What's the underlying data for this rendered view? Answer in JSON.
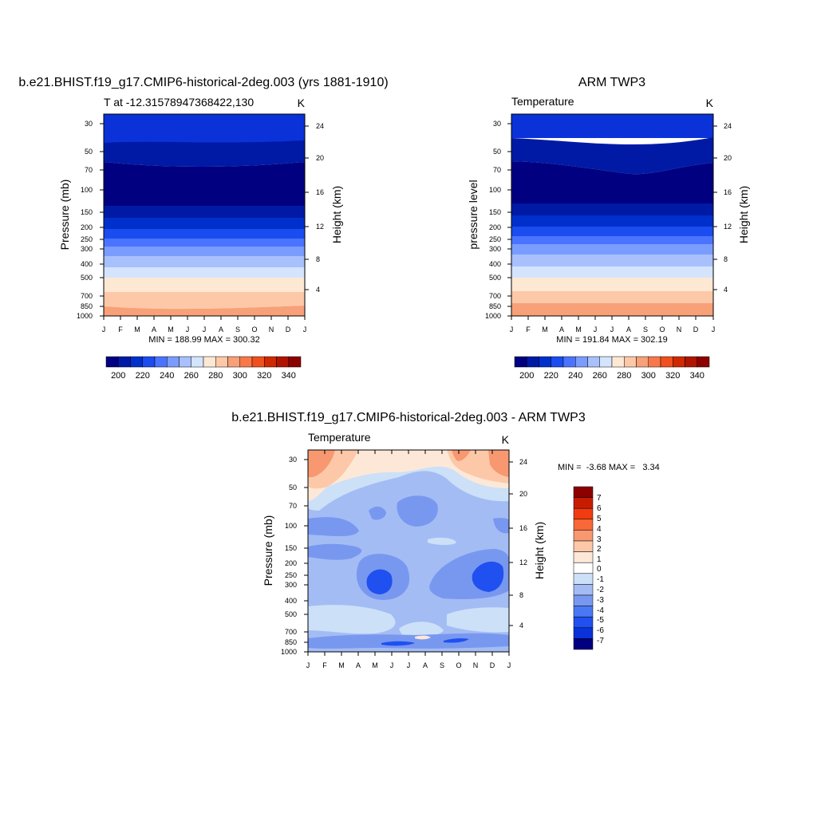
{
  "chart_data": [
    {
      "type": "heatmap",
      "title": "b.e21.BHIST.f19_g17.CMIP6-historical-2deg.003 (yrs 1881-1910)",
      "left_label": "T at -12.31578947368422,130",
      "right_label": "K",
      "xlabel": "",
      "ylabel": "Pressure (mb)",
      "ylabel_right": "Height (km)",
      "x_ticks": [
        "J",
        "F",
        "M",
        "A",
        "M",
        "J",
        "J",
        "A",
        "S",
        "O",
        "N",
        "D",
        "J"
      ],
      "y_ticks": [
        "30",
        "50",
        "70",
        "100",
        "150",
        "200",
        "250",
        "300",
        "400",
        "500",
        "700",
        "850",
        "1000"
      ],
      "y_right_ticks": [
        "24",
        "20",
        "16",
        "12",
        "8",
        "4"
      ],
      "ylim_mb": [
        25,
        1000
      ],
      "stats": "MIN = 188.99 MAX = 300.32",
      "min": 188.99,
      "max": 300.32,
      "colorbar": {
        "orientation": "horizontal",
        "colors": [
          "#000080",
          "#001aa6",
          "#0030cc",
          "#1a4cf0",
          "#4a74ff",
          "#7a9cff",
          "#a8c0fc",
          "#d4e4fc",
          "#fde8d4",
          "#fcc8a8",
          "#f8a078",
          "#f8784a",
          "#f0501e",
          "#d02800",
          "#b01400",
          "#8c0000"
        ],
        "tick_labels": [
          "200",
          "220",
          "240",
          "260",
          "280",
          "300",
          "320",
          "340"
        ]
      }
    },
    {
      "type": "heatmap",
      "title": "ARM TWP3",
      "left_label": "Temperature",
      "right_label": "K",
      "xlabel": "",
      "ylabel": "pressure level",
      "ylabel_right": "Height (km)",
      "x_ticks": [
        "J",
        "F",
        "M",
        "A",
        "M",
        "J",
        "J",
        "A",
        "S",
        "O",
        "N",
        "D",
        "J"
      ],
      "y_ticks": [
        "30",
        "50",
        "70",
        "100",
        "150",
        "200",
        "250",
        "300",
        "400",
        "500",
        "700",
        "850",
        "1000"
      ],
      "y_right_ticks": [
        "24",
        "20",
        "16",
        "12",
        "8",
        "4"
      ],
      "ylim_mb": [
        25,
        1000
      ],
      "stats": "MIN = 191.84 MAX = 302.19",
      "min": 191.84,
      "max": 302.19,
      "colorbar": {
        "orientation": "horizontal",
        "colors": [
          "#000080",
          "#001aa6",
          "#0030cc",
          "#1a4cf0",
          "#4a74ff",
          "#7a9cff",
          "#a8c0fc",
          "#d4e4fc",
          "#fde8d4",
          "#fcc8a8",
          "#f8a078",
          "#f8784a",
          "#f0501e",
          "#d02800",
          "#b01400",
          "#8c0000"
        ],
        "tick_labels": [
          "200",
          "220",
          "240",
          "260",
          "280",
          "300",
          "320",
          "340"
        ]
      }
    },
    {
      "type": "heatmap",
      "title": "b.e21.BHIST.f19_g17.CMIP6-historical-2deg.003 - ARM TWP3",
      "left_label": "Temperature",
      "right_label": "K",
      "xlabel": "",
      "ylabel": "Pressure (mb)",
      "ylabel_right": "Height (km)",
      "x_ticks": [
        "J",
        "F",
        "M",
        "A",
        "M",
        "J",
        "J",
        "A",
        "S",
        "O",
        "N",
        "D",
        "J"
      ],
      "y_ticks": [
        "30",
        "50",
        "70",
        "100",
        "150",
        "200",
        "250",
        "300",
        "400",
        "500",
        "700",
        "850",
        "1000"
      ],
      "y_right_ticks": [
        "24",
        "20",
        "16",
        "12",
        "8",
        "4"
      ],
      "ylim_mb": [
        25,
        1000
      ],
      "stats": "MIN =  -3.68 MAX =   3.34",
      "min": -3.68,
      "max": 3.34,
      "colorbar": {
        "orientation": "vertical",
        "colors": [
          "#000080",
          "#0014b0",
          "#0a32d8",
          "#2050f0",
          "#4a78f4",
          "#7898f0",
          "#a4bcf4",
          "#cce0f8",
          "#fde8d8",
          "#fcc8a8",
          "#f89870",
          "#f86838",
          "#f03c10",
          "#c81c00",
          "#8c0000"
        ],
        "tick_labels": [
          "-7",
          "-6",
          "-5",
          "-4",
          "-3",
          "-2",
          "-1",
          "0",
          "1",
          "2",
          "3",
          "4",
          "5",
          "6",
          "7"
        ]
      }
    }
  ]
}
